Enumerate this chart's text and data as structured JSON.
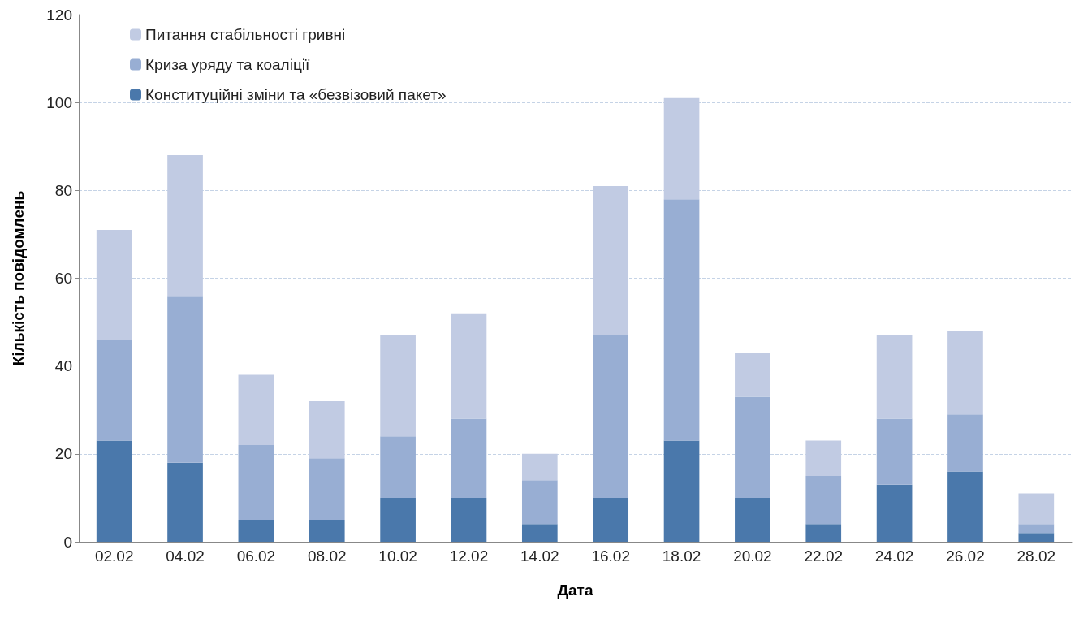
{
  "chart_data": {
    "type": "bar",
    "stacked": true,
    "xlabel": "Дата",
    "ylabel": "Кількість повідомлень",
    "categories": [
      "02.02",
      "04.02",
      "06.02",
      "08.02",
      "10.02",
      "12.02",
      "14.02",
      "16.02",
      "18.02",
      "20.02",
      "22.02",
      "24.02",
      "26.02",
      "28.02"
    ],
    "series": [
      {
        "name": "Конституційні зміни та «безвізовий пакет»",
        "color": "#4a78ab",
        "values": [
          23,
          18,
          5,
          5,
          10,
          10,
          4,
          10,
          23,
          10,
          4,
          13,
          16,
          2
        ]
      },
      {
        "name": "Криза уряду та коаліції",
        "color": "#98aed3",
        "values": [
          23,
          38,
          17,
          14,
          14,
          18,
          10,
          37,
          55,
          23,
          11,
          15,
          13,
          2
        ]
      },
      {
        "name": "Питання стабільності гривні",
        "color": "#c1cbe3",
        "values": [
          25,
          32,
          16,
          13,
          23,
          24,
          6,
          34,
          23,
          10,
          8,
          19,
          19,
          7
        ]
      }
    ],
    "ylim": [
      0,
      120
    ],
    "yticks": [
      0,
      20,
      40,
      60,
      80,
      100,
      120
    ],
    "grid": "y",
    "legend": "top left"
  }
}
